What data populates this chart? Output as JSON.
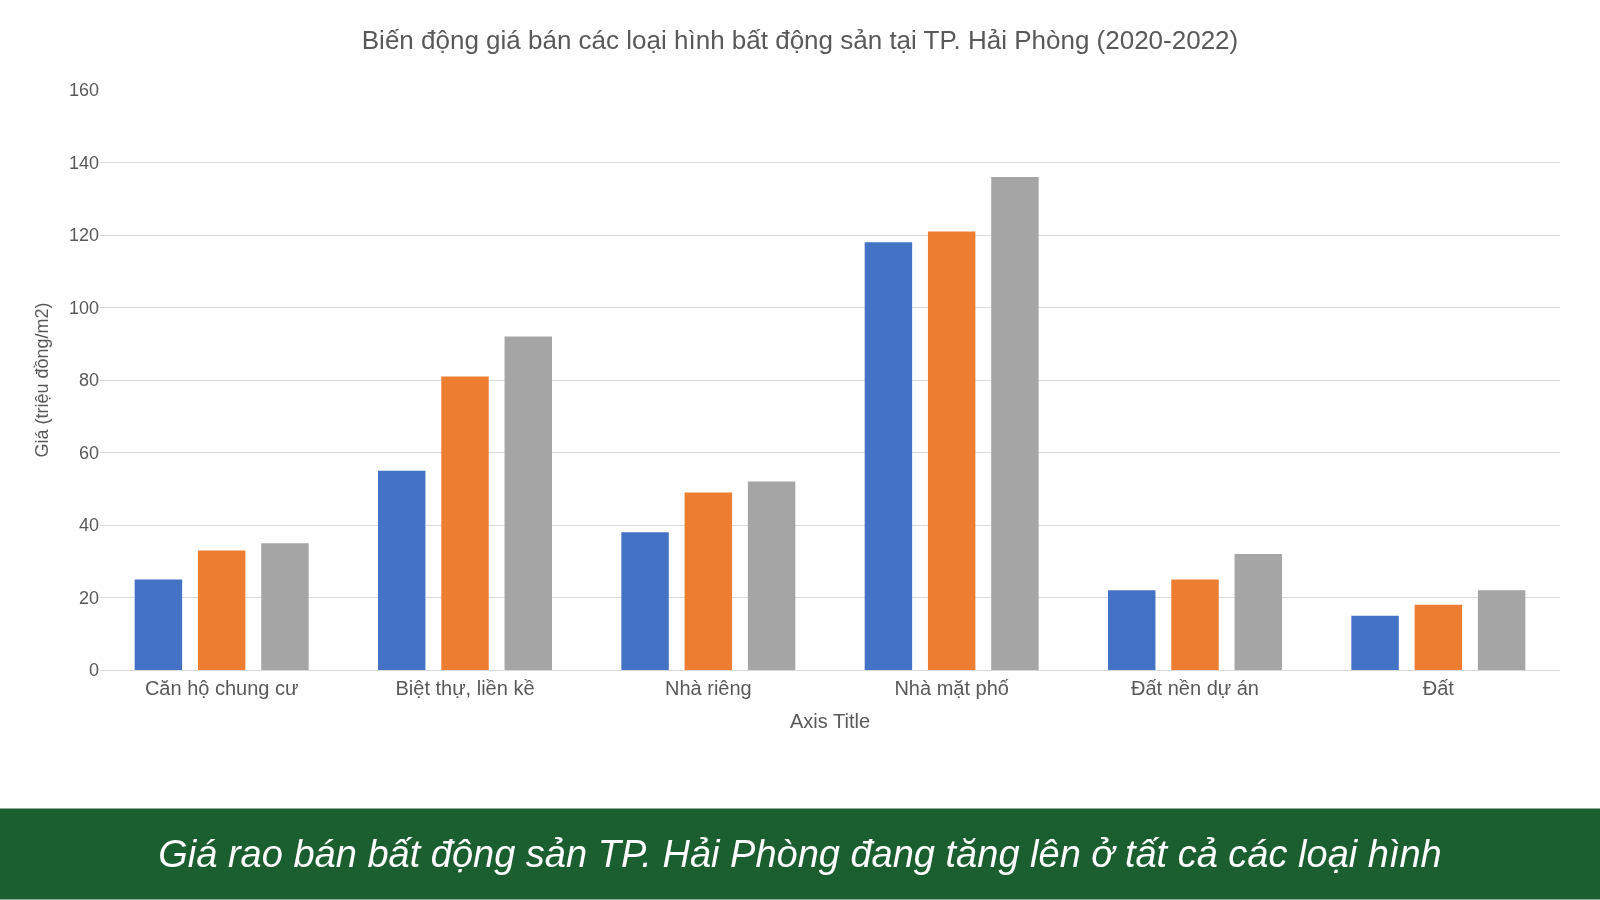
{
  "chart_data": {
    "type": "bar",
    "title": "Biến động giá bán các loại hình bất động sản tại TP. Hải Phòng (2020-2022)",
    "xlabel": "Axis Title",
    "ylabel": "Giá (triệu đồng/m2)",
    "categories": [
      "Căn hộ chung cư",
      "Biệt thự, liền kề",
      "Nhà riêng",
      "Nhà mặt phố",
      "Đất nền dự án",
      "Đất"
    ],
    "series": [
      {
        "color": "#4472c4",
        "values": [
          25,
          55,
          38,
          118,
          22,
          15
        ]
      },
      {
        "color": "#ed7d31",
        "values": [
          33,
          81,
          49,
          121,
          25,
          18
        ]
      },
      {
        "color": "#a5a5a5",
        "values": [
          35,
          92,
          52,
          136,
          32,
          22
        ]
      }
    ],
    "ylim": [
      0,
      160
    ],
    "yticks": [
      0,
      20,
      40,
      60,
      80,
      100,
      120,
      140,
      160
    ],
    "grid": "y",
    "annotations": [
      "Giá rao bán bất động sản TP. Hải Phòng đang tăng lên ở tất cả các loại hình"
    ]
  }
}
